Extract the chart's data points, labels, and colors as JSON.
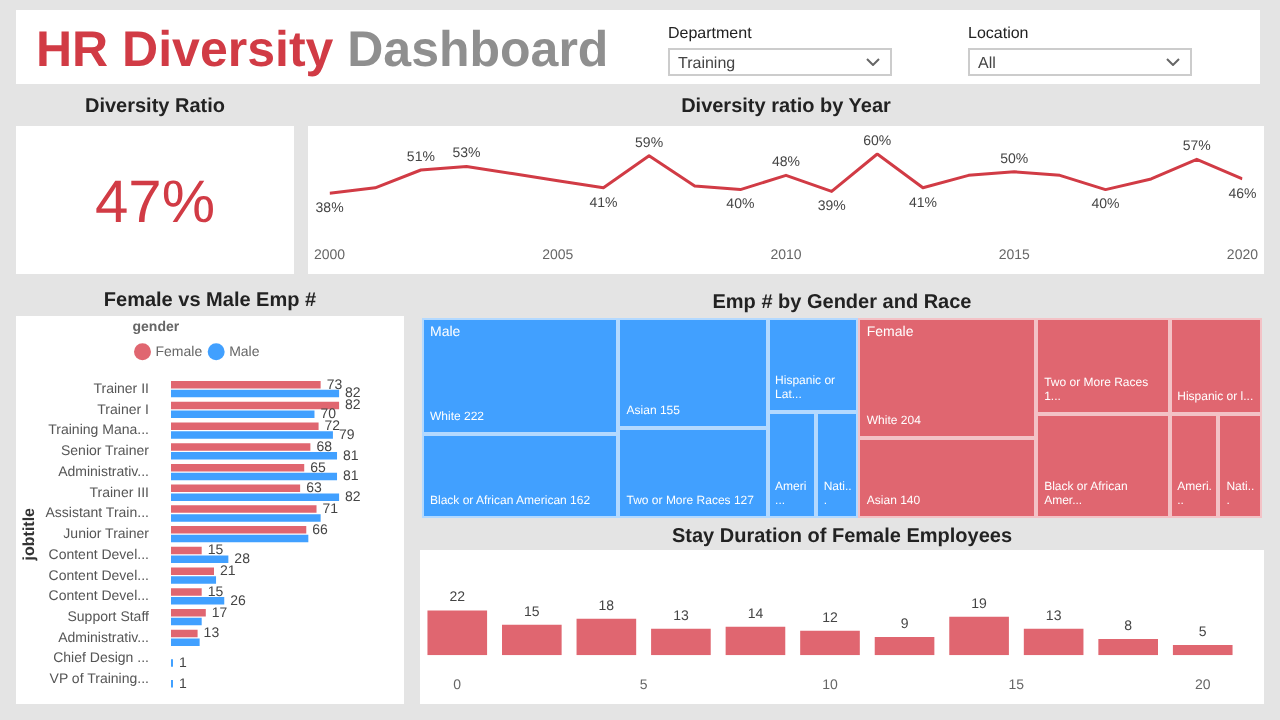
{
  "chart_data": [
    {
      "type": "other",
      "title": "HR Diversity Dashboard",
      "annotations": [
        "Department",
        "Training",
        "Location",
        "All"
      ]
    },
    {
      "type": "other",
      "title": "Diversity Ratio",
      "values": [
        47
      ],
      "value_labels": [
        "47%"
      ]
    },
    {
      "type": "line",
      "title": "Diversity ratio by Year",
      "x": [
        2000,
        2001,
        2002,
        2003,
        2004,
        2005,
        2006,
        2007,
        2008,
        2009,
        2010,
        2011,
        2012,
        2013,
        2014,
        2015,
        2016,
        2017,
        2018,
        2019,
        2020
      ],
      "series": [
        {
          "color": "#d13b45",
          "values": [
            38,
            41,
            51,
            53,
            49,
            45,
            41,
            59,
            42,
            40,
            48,
            39,
            60,
            41,
            48,
            50,
            48,
            40,
            46,
            57,
            46
          ],
          "value_labels": [
            "38%",
            null,
            "51%",
            "53%",
            null,
            null,
            "41%",
            "59%",
            null,
            "40%",
            "48%",
            "39%",
            "60%",
            "41%",
            null,
            "50%",
            null,
            "40%",
            null,
            "57%",
            "46%"
          ]
        }
      ],
      "xlim": [
        2000,
        2020
      ],
      "xticks": [
        2000,
        2005,
        2010,
        2015,
        2020
      ],
      "tick_labels": "x",
      "marker": "none",
      "line_style": "solid"
    },
    {
      "type": "bar",
      "orientation": "horizontal",
      "title": "Female vs Male Emp #",
      "ylabel": "jobtitle",
      "legend": "top",
      "legend_title": "gender",
      "tick_labels": "y",
      "categories": [
        "Trainer II",
        "Trainer I",
        "Training Mana...",
        "Senior Trainer",
        "Administrativ...",
        "Trainer III",
        "Assistant Train...",
        "Junior Trainer",
        "Content Devel...",
        "Content Devel...",
        "Content Devel...",
        "Support Staff",
        "Administrativ...",
        "Chief Design ...",
        "VP of Training..."
      ],
      "series": [
        {
          "name": "Female",
          "color": "#e06670",
          "values": [
            73,
            82,
            72,
            68,
            65,
            63,
            71,
            66,
            15,
            21,
            15,
            17,
            13,
            null,
            null
          ],
          "value_labels": [
            "73",
            "82",
            "72",
            "68",
            "65",
            "63",
            "71",
            "66",
            "15",
            "21",
            "15",
            "17",
            "13",
            null,
            null
          ]
        },
        {
          "name": "Male",
          "color": "#41a0ff",
          "values": [
            82,
            70,
            79,
            81,
            81,
            82,
            73,
            67,
            28,
            22,
            26,
            15,
            14,
            1,
            1
          ],
          "value_labels": [
            "82",
            "70",
            "79",
            "81",
            "81",
            "82",
            null,
            null,
            "28",
            null,
            "26",
            null,
            null,
            "1",
            "1"
          ]
        }
      ]
    },
    {
      "type": "other",
      "title": "Emp # by Gender and Race",
      "annotations": [
        "Male",
        "Female"
      ],
      "categories": [
        "White 222",
        "Black or African American 162",
        "Asian 155",
        "Two or More Races 127",
        "Hispanic or Lat...",
        "Ameri...",
        "Nati...",
        "White 204",
        "Asian 140",
        "Two or More Races 1...",
        "Black or African Amer...",
        "Hispanic or l...",
        "Ameri...",
        "Nati..."
      ],
      "colors": [
        "#41a0ff",
        "#41a0ff",
        "#41a0ff",
        "#41a0ff",
        "#41a0ff",
        "#41a0ff",
        "#41a0ff",
        "#e06670",
        "#e06670",
        "#e06670",
        "#e06670",
        "#e06670",
        "#e06670",
        "#e06670"
      ]
    },
    {
      "type": "bar",
      "title": "Stay Duration of Female Employees",
      "x": [
        0,
        2,
        4,
        6,
        8,
        10,
        12,
        14,
        16,
        18,
        20
      ],
      "values": [
        22,
        15,
        18,
        13,
        14,
        12,
        9,
        19,
        13,
        8,
        5
      ],
      "color": "#e06670",
      "xlim": [
        -1,
        21
      ],
      "xticks": [
        0,
        5,
        10,
        15,
        20
      ],
      "data_labels": true,
      "tick_labels": "x"
    }
  ]
}
